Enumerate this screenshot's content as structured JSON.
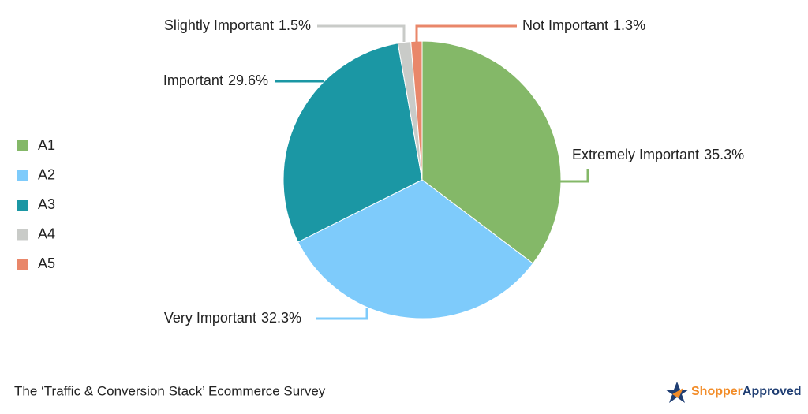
{
  "chart_data": {
    "type": "pie",
    "categories": [
      "A1",
      "A2",
      "A3",
      "A4",
      "A5"
    ],
    "slice_labels": [
      "Extremely Important",
      "Very Important",
      "Important",
      "Slightly Important",
      "Not Important"
    ],
    "values": [
      35.3,
      32.3,
      29.6,
      1.5,
      1.3
    ],
    "value_labels": [
      "35.3%",
      "32.3%",
      "29.6%",
      "1.5%",
      "1.3%"
    ],
    "colors": [
      "#84b868",
      "#7ecbfb",
      "#1b97a4",
      "#c9cbc8",
      "#e9876a"
    ],
    "legend": "left"
  },
  "footer": {
    "caption": "The ‘Traffic & Conversion Stack’ Ecommerce Survey",
    "brand": [
      "Shopper",
      "Approved"
    ]
  }
}
